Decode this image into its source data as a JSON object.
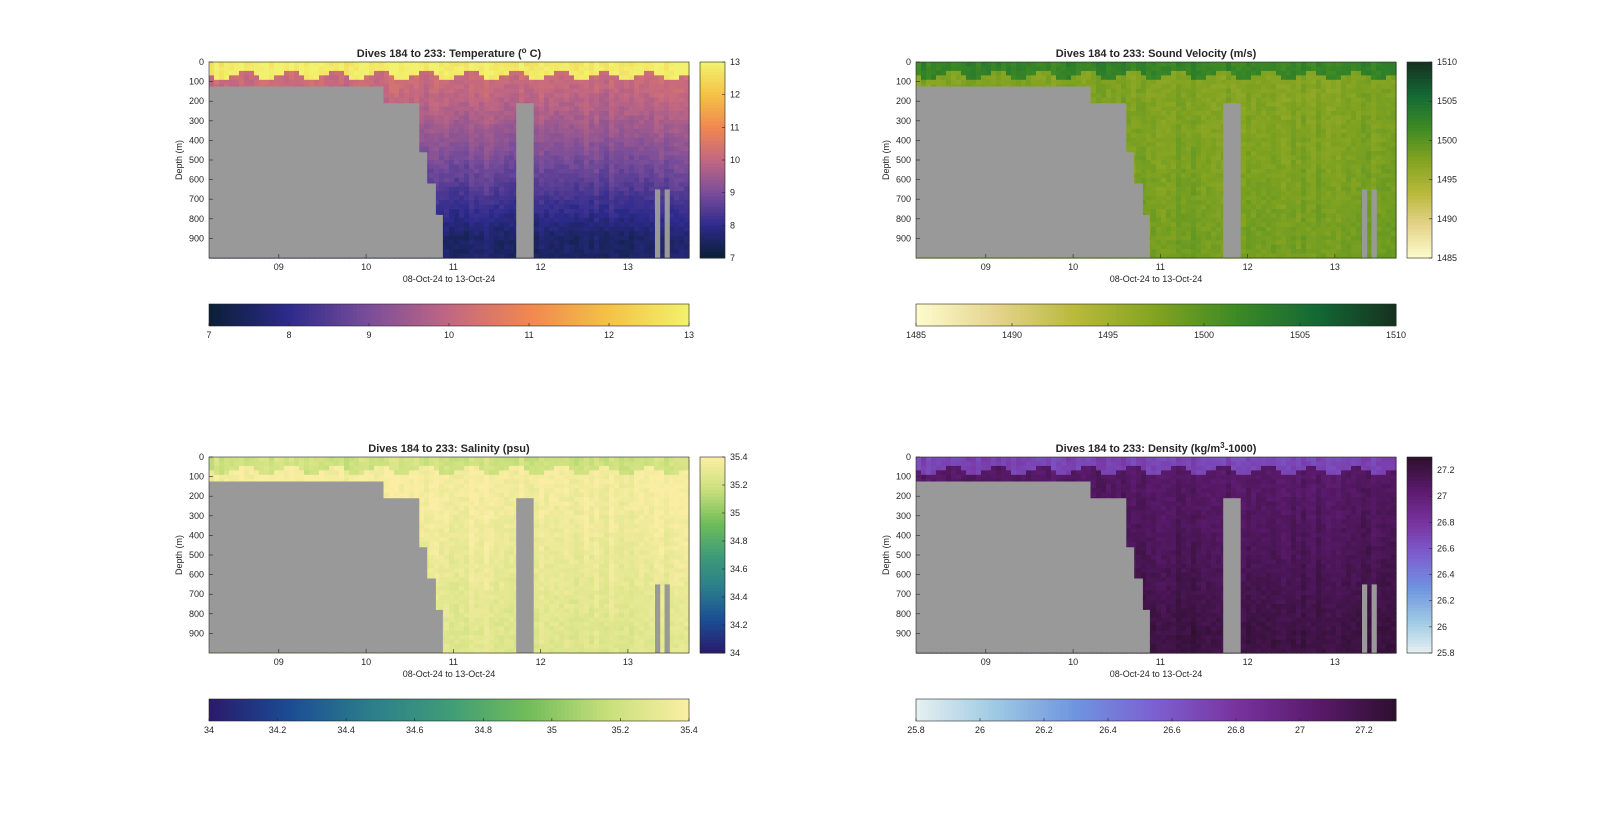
{
  "figure": {
    "shared_xlabel": "08-Oct-24 to 13-Oct-24",
    "depth_label": "Depth (m)",
    "colors": {
      "land_mask": "#999999",
      "axis": "#262626"
    }
  },
  "chart_data": [
    {
      "type": "heatmap",
      "id": "temperature",
      "title": "Dives 184 to 233: Temperature (",
      "title_sup": "o",
      "title_end": " C)",
      "xlabel": "08-Oct-24 to 13-Oct-24",
      "ylabel": "Depth (m)",
      "x_ticks": [
        "09",
        "10",
        "11",
        "12",
        "13"
      ],
      "x_range_days": [
        8.2,
        13.7
      ],
      "y_ticks": [
        0,
        100,
        200,
        300,
        400,
        500,
        600,
        700,
        800,
        900
      ],
      "y_range_m": [
        0,
        1000
      ],
      "y_reversed": true,
      "colormap": "thermal",
      "color_stops": [
        "#0a1f35",
        "#2d2a8c",
        "#7a4d9a",
        "#c26782",
        "#f1874f",
        "#f4c247",
        "#f2f26e"
      ],
      "clim": [
        7,
        13
      ],
      "colorbar_ticks": [
        "7",
        "8",
        "9",
        "10",
        "11",
        "12",
        "13"
      ],
      "horizontal_colorbar_ticks": [
        "7",
        "8",
        "9",
        "10",
        "11",
        "12",
        "13"
      ],
      "profile": {
        "surface": 12.9,
        "mixed_layer_depth_m": 70,
        "mid": 10.2,
        "deep": 7.6
      }
    },
    {
      "type": "heatmap",
      "id": "sound_velocity",
      "title": "Dives 184 to 233: Sound Velocity (m/s)",
      "xlabel": "08-Oct-24 to 13-Oct-24",
      "ylabel": "Depth (m)",
      "x_ticks": [
        "09",
        "10",
        "11",
        "12",
        "13"
      ],
      "x_range_days": [
        8.2,
        13.7
      ],
      "y_ticks": [
        0,
        100,
        200,
        300,
        400,
        500,
        600,
        700,
        800,
        900
      ],
      "y_range_m": [
        0,
        1000
      ],
      "y_reversed": true,
      "colormap": "speed",
      "color_stops": [
        "#fefccd",
        "#e5d48c",
        "#b9b93b",
        "#82a321",
        "#3d8a24",
        "#136935",
        "#15311f"
      ],
      "clim": [
        1485,
        1510
      ],
      "colorbar_ticks": [
        "1485",
        "1490",
        "1495",
        "1500",
        "1505",
        "1510"
      ],
      "horizontal_colorbar_ticks": [
        "1485",
        "1490",
        "1495",
        "1500",
        "1505",
        "1510"
      ],
      "profile": {
        "surface": 1502.5,
        "mixed_layer_depth_m": 70,
        "mid": 1497.5,
        "deep": 1498.5
      }
    },
    {
      "type": "heatmap",
      "id": "salinity",
      "title": "Dives 184 to 233: Salinity (psu)",
      "xlabel": "08-Oct-24 to 13-Oct-24",
      "ylabel": "Depth (m)",
      "x_ticks": [
        "09",
        "10",
        "11",
        "12",
        "13"
      ],
      "x_range_days": [
        8.2,
        13.7
      ],
      "y_ticks": [
        0,
        100,
        200,
        300,
        400,
        500,
        600,
        700,
        800,
        900
      ],
      "y_range_m": [
        0,
        1000
      ],
      "y_reversed": true,
      "colormap": "haline",
      "color_stops": [
        "#2a1a6b",
        "#1b4c94",
        "#2b7d8b",
        "#3f9c77",
        "#72bd5a",
        "#c9e07c",
        "#fbeea4"
      ],
      "clim": [
        34,
        35.4
      ],
      "colorbar_ticks": [
        "34",
        "34.2",
        "34.4",
        "34.6",
        "34.8",
        "35",
        "35.2",
        "35.4"
      ],
      "horizontal_colorbar_ticks": [
        "34",
        "34.2",
        "34.4",
        "34.6",
        "34.8",
        "35",
        "35.2",
        "35.4"
      ],
      "profile": {
        "surface": 35.2,
        "mixed_layer_depth_m": 70,
        "mid": 35.38,
        "deep": 35.28
      }
    },
    {
      "type": "heatmap",
      "id": "density",
      "title": "Dives 184 to 233: Density (kg/m",
      "title_sup": "3",
      "title_end": "-1000)",
      "xlabel": "08-Oct-24 to 13-Oct-24",
      "ylabel": "Depth (m)",
      "x_ticks": [
        "09",
        "10",
        "11",
        "12",
        "13"
      ],
      "x_range_days": [
        8.2,
        13.7
      ],
      "y_ticks": [
        0,
        100,
        200,
        300,
        400,
        500,
        600,
        700,
        800,
        900
      ],
      "y_range_m": [
        0,
        1000
      ],
      "y_reversed": true,
      "colormap": "dense",
      "color_stops": [
        "#e6f1f1",
        "#9dc9e3",
        "#6f94e0",
        "#7c5fd0",
        "#79339f",
        "#5a1a6c",
        "#2e0f2e"
      ],
      "clim": [
        25.8,
        27.3
      ],
      "colorbar_ticks": [
        "25.8",
        "26",
        "26.2",
        "26.4",
        "26.6",
        "26.8",
        "27",
        "27.2"
      ],
      "horizontal_colorbar_ticks": [
        "25.8",
        "26",
        "26.2",
        "26.4",
        "26.6",
        "26.8",
        "27",
        "27.2"
      ],
      "profile": {
        "surface": 26.7,
        "mixed_layer_depth_m": 70,
        "mid": 27.08,
        "deep": 27.22
      }
    }
  ]
}
